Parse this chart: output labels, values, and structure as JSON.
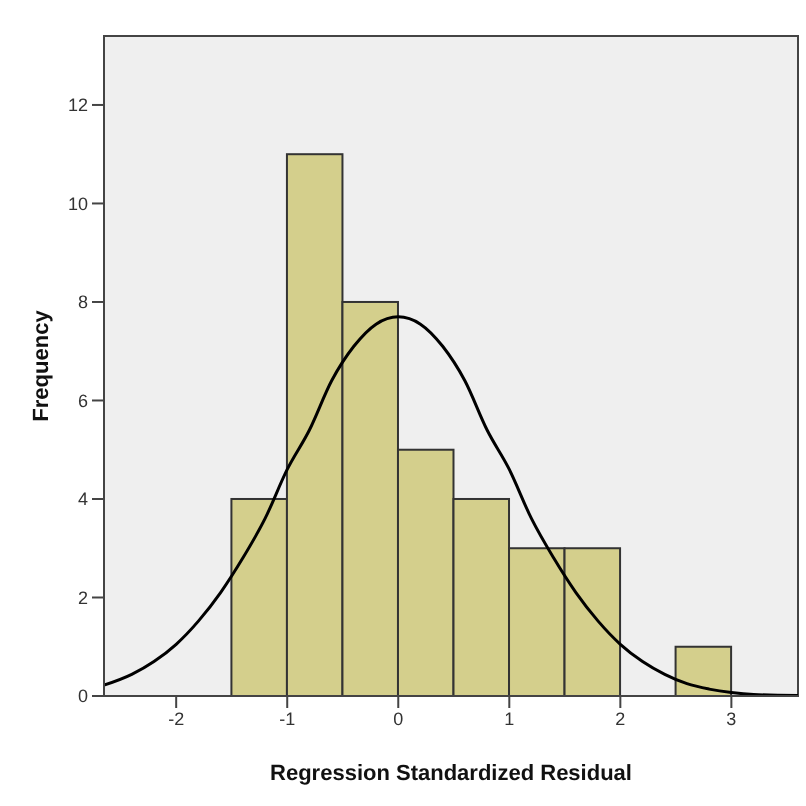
{
  "chart_data": {
    "type": "histogram",
    "xlabel": "Regression Standardized Residual",
    "ylabel": "Frequency",
    "bins": [
      -1.5,
      -1,
      -0.5,
      0,
      0.5,
      1,
      1.5,
      2,
      2.5,
      3
    ],
    "values": [
      4,
      11,
      8,
      5,
      4,
      3,
      3,
      0,
      1
    ],
    "color": "#d4cf8c",
    "series": [
      {
        "type": "line",
        "color": "#000000",
        "x": [
          -2.65,
          -2.4,
          -2.2,
          -2,
          -1.8,
          -1.6,
          -1.4,
          -1.2,
          -1,
          -0.8,
          -0.6,
          -0.4,
          -0.2,
          0,
          0.2,
          0.4,
          0.6,
          0.8,
          1,
          1.2,
          1.4,
          1.6,
          1.8,
          2,
          2.2,
          2.4,
          2.6,
          2.8,
          3,
          3.2,
          3.6
        ],
        "values": [
          0.22,
          0.44,
          0.7,
          1.05,
          1.52,
          2.1,
          2.8,
          3.6,
          4.6,
          5.4,
          6.4,
          7.1,
          7.55,
          7.7,
          7.55,
          7.1,
          6.4,
          5.4,
          4.6,
          3.6,
          2.8,
          2.1,
          1.52,
          1.05,
          0.7,
          0.44,
          0.25,
          0.14,
          0.07,
          0.03,
          0.01
        ]
      }
    ],
    "xlim": [
      -2.65,
      3.6
    ],
    "xticks": [
      -2,
      -1,
      0,
      1,
      2,
      3
    ],
    "ylim": [
      0,
      13.4
    ],
    "yticks": [
      0,
      2,
      4,
      6,
      8,
      10,
      12
    ],
    "grid": false,
    "legend": false,
    "marker": "none"
  }
}
